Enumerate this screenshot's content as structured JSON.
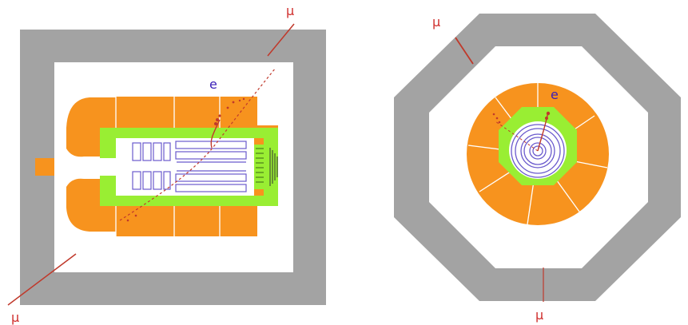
{
  "colors": {
    "yoke": "#a3a3a3",
    "calorimeter": "#f7931e",
    "preshower": "#99ee33",
    "tracker_lines": "#6a5acd",
    "track": "#c0392b",
    "label_e": "#3a1fb8",
    "label_mu": "#d0302e"
  },
  "labels": {
    "side_view": {
      "electron": "e",
      "muon_top": "μ",
      "muon_bottom": "μ"
    },
    "end_view": {
      "electron": "e",
      "muon_top": "μ",
      "muon_bottom": "μ"
    }
  }
}
